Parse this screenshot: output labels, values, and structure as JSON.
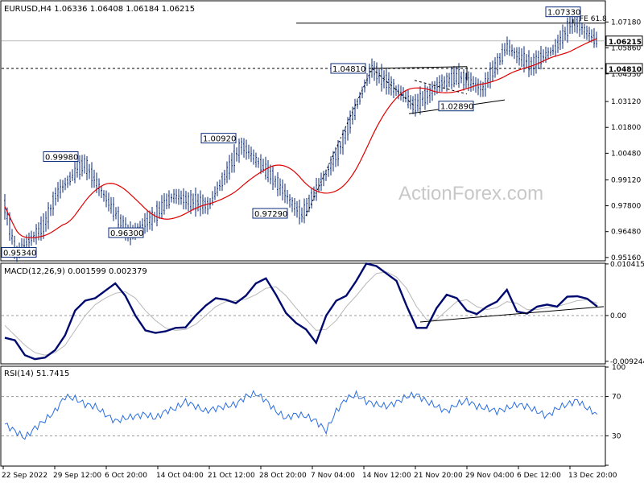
{
  "chart_data": [
    {
      "type": "candlestick",
      "header": "EURUSD,H4  1.06336 1.06408 1.06184 1.06215",
      "ylim": [
        0.9503,
        1.0822
      ],
      "y_ticks": [
        "1.07180",
        "1.05860",
        "1.04530",
        "1.03120",
        "1.01800",
        "1.00480",
        "0.99120",
        "0.97800",
        "0.96480",
        "0.95160"
      ],
      "y_tick_values": [
        1.0718,
        1.0586,
        1.0453,
        1.0312,
        1.018,
        1.0048,
        0.9912,
        0.978,
        0.9648,
        0.9516
      ],
      "current_price": "1.06215",
      "current_value": 1.06215,
      "level_label": "1.04810",
      "level_value": 1.0481,
      "fe_label": "FE 61.8",
      "fe_value": 1.0712,
      "price_labels": [
        {
          "text": "0.95340",
          "value": 0.9534
        },
        {
          "text": "0.99980",
          "value": 0.9998
        },
        {
          "text": "0.96300",
          "value": 0.963
        },
        {
          "text": "1.00920",
          "value": 1.0092
        },
        {
          "text": "0.97290",
          "value": 0.9729
        },
        {
          "text": "1.04810",
          "value": 1.0481
        },
        {
          "text": "1.02890",
          "value": 1.0289
        },
        {
          "text": "1.07330",
          "value": 1.0733
        }
      ],
      "moving_average_color": "#e00000",
      "price_color": "#0a2a7a",
      "watermark": "ActionForex.com"
    },
    {
      "type": "line",
      "header": "MACD(12,26,9) 0.001599 0.002379",
      "ylim": [
        -0.0096,
        0.0104
      ],
      "y_ticks": [
        "0.010415",
        "0.00",
        "-0.009244"
      ],
      "y_tick_values": [
        0.010415,
        0.0,
        -0.009244
      ],
      "series": [
        {
          "values": [
            -0.0045,
            -0.005,
            -0.008,
            -0.0088,
            -0.0085,
            -0.007,
            -0.004,
            0.001,
            0.003,
            0.0035,
            0.005,
            0.0065,
            0.004,
            0.0,
            -0.003,
            -0.0035,
            -0.0032,
            -0.0025,
            -0.0024,
            0.0,
            0.002,
            0.0035,
            0.0032,
            0.0025,
            0.004,
            0.0065,
            0.0075,
            0.0042,
            0.0005,
            -0.0015,
            -0.0028,
            -0.0055,
            0.0,
            0.003,
            0.004,
            0.007,
            0.0105,
            0.01,
            0.0085,
            0.007,
            0.002,
            -0.0025,
            -0.0025,
            0.0015,
            0.0042,
            0.0035,
            0.001,
            0.0003,
            0.0018,
            0.0028,
            0.0052,
            0.0008,
            0.0004,
            0.0018,
            0.0022,
            0.0018,
            0.0038,
            0.0039,
            0.0034,
            0.0018
          ]
        },
        {
          "values": [
            -0.002,
            -0.004,
            -0.006,
            -0.0075,
            -0.008,
            -0.0075,
            -0.006,
            -0.003,
            0.0,
            0.0022,
            0.0035,
            0.0045,
            0.0048,
            0.0035,
            0.001,
            -0.001,
            -0.0025,
            -0.003,
            -0.0028,
            -0.0018,
            0.0,
            0.0018,
            0.0028,
            0.003,
            0.0033,
            0.0042,
            0.0055,
            0.0058,
            0.004,
            0.0015,
            -0.0008,
            -0.003,
            -0.0028,
            -0.001,
            0.0018,
            0.004,
            0.0065,
            0.0085,
            0.0088,
            0.0078,
            0.0055,
            0.0018,
            -0.0008,
            -0.0008,
            0.001,
            0.0028,
            0.0032,
            0.0018,
            0.0012,
            0.0016,
            0.0028,
            0.0025,
            0.0012,
            0.0012,
            0.0016,
            0.0018,
            0.0024,
            0.003,
            0.0032,
            0.0025
          ]
        }
      ]
    },
    {
      "type": "line",
      "header": "RSI(14) 51.7415",
      "ylim": [
        0,
        100
      ],
      "y_ticks": [
        "100",
        "70",
        "30",
        "0"
      ],
      "y_tick_values": [
        100,
        70,
        30,
        0
      ],
      "series": [
        {
          "values": [
            42,
            35,
            28,
            38,
            46,
            55,
            70,
            68,
            62,
            60,
            52,
            45,
            48,
            50,
            52,
            48,
            55,
            58,
            65,
            60,
            55,
            58,
            60,
            62,
            70,
            73,
            66,
            55,
            48,
            52,
            50,
            45,
            35,
            55,
            68,
            72,
            65,
            62,
            60,
            64,
            70,
            72,
            65,
            60,
            55,
            62,
            66,
            60,
            58,
            55,
            58,
            62,
            60,
            55,
            50,
            58,
            62,
            66,
            58,
            52
          ]
        }
      ]
    }
  ],
  "x_axis": {
    "labels": [
      "22 Sep 2022",
      "29 Sep 12:00",
      "6 Oct 20:00",
      "14 Oct 04:00",
      "21 Oct 12:00",
      "28 Oct 20:00",
      "7 Nov 04:00",
      "14 Nov 12:00",
      "21 Nov 20:00",
      "29 Nov 04:00",
      "6 Dec 12:00",
      "13 Dec 20:00"
    ]
  }
}
